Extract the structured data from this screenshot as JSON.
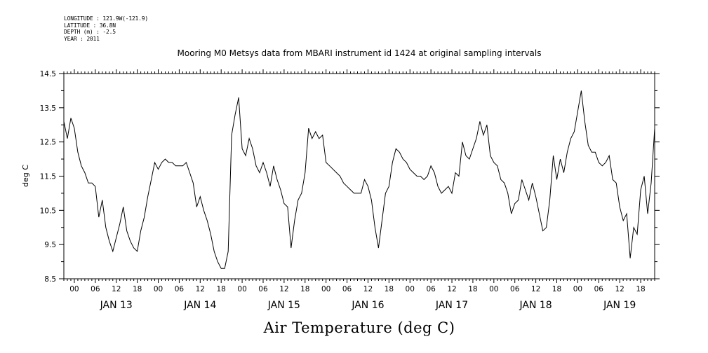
{
  "header": {
    "lines": [
      "LONGITUDE : 121.9W(-121.9)",
      "LATITUDE : 36.8N",
      "DEPTH (m) : -2.5",
      "YEAR : 2011"
    ]
  },
  "chart_data": {
    "type": "line",
    "title": "Mooring M0 Metsys data from MBARI instrument id 1424 at original sampling intervals",
    "xlabel": "Air Temperature (deg C)",
    "ylabel": "deg C",
    "ylim": [
      8.5,
      14.5
    ],
    "yticks": [
      "14.5",
      "13.5",
      "12.5",
      "11.5",
      "10.5",
      "9.5",
      "8.5"
    ],
    "x_hour_labels": [
      "00",
      "06",
      "12",
      "18"
    ],
    "days": [
      {
        "date": "2011-01-13",
        "label": "JAN 13"
      },
      {
        "date": "2011-01-14",
        "label": "JAN 14"
      },
      {
        "date": "2011-01-15",
        "label": "JAN 15"
      },
      {
        "date": "2011-01-16",
        "label": "JAN 16"
      },
      {
        "date": "2011-01-17",
        "label": "JAN 17"
      },
      {
        "date": "2011-01-18",
        "label": "JAN 18"
      },
      {
        "date": "2011-01-19",
        "label": "JAN 19"
      }
    ],
    "xlim": [
      "2011-01-12 21:00",
      "2011-01-19 22:00"
    ],
    "grid": false,
    "series": [
      {
        "color": "#000000",
        "points": [
          [
            "2011-01-12 21:00",
            13.1
          ],
          [
            "2011-01-12 22:00",
            12.6
          ],
          [
            "2011-01-12 23:00",
            13.2
          ],
          [
            "2011-01-13 00:00",
            12.9
          ],
          [
            "2011-01-13 01:00",
            12.2
          ],
          [
            "2011-01-13 02:00",
            11.8
          ],
          [
            "2011-01-13 03:00",
            11.6
          ],
          [
            "2011-01-13 04:00",
            11.3
          ],
          [
            "2011-01-13 05:00",
            11.3
          ],
          [
            "2011-01-13 06:00",
            11.2
          ],
          [
            "2011-01-13 07:00",
            10.3
          ],
          [
            "2011-01-13 08:00",
            10.8
          ],
          [
            "2011-01-13 09:00",
            10.0
          ],
          [
            "2011-01-13 10:00",
            9.6
          ],
          [
            "2011-01-13 11:00",
            9.3
          ],
          [
            "2011-01-13 12:00",
            9.7
          ],
          [
            "2011-01-13 13:00",
            10.1
          ],
          [
            "2011-01-13 14:00",
            10.6
          ],
          [
            "2011-01-13 15:00",
            9.9
          ],
          [
            "2011-01-13 16:00",
            9.6
          ],
          [
            "2011-01-13 17:00",
            9.4
          ],
          [
            "2011-01-13 18:00",
            9.3
          ],
          [
            "2011-01-13 19:00",
            9.9
          ],
          [
            "2011-01-13 20:00",
            10.3
          ],
          [
            "2011-01-13 21:00",
            10.9
          ],
          [
            "2011-01-13 22:00",
            11.4
          ],
          [
            "2011-01-13 23:00",
            11.9
          ],
          [
            "2011-01-14 00:00",
            11.7
          ],
          [
            "2011-01-14 01:00",
            11.9
          ],
          [
            "2011-01-14 02:00",
            12.0
          ],
          [
            "2011-01-14 03:00",
            11.9
          ],
          [
            "2011-01-14 04:00",
            11.9
          ],
          [
            "2011-01-14 05:00",
            11.8
          ],
          [
            "2011-01-14 06:00",
            11.8
          ],
          [
            "2011-01-14 07:00",
            11.8
          ],
          [
            "2011-01-14 08:00",
            11.9
          ],
          [
            "2011-01-14 09:00",
            11.6
          ],
          [
            "2011-01-14 10:00",
            11.3
          ],
          [
            "2011-01-14 11:00",
            10.6
          ],
          [
            "2011-01-14 12:00",
            10.9
          ],
          [
            "2011-01-14 13:00",
            10.5
          ],
          [
            "2011-01-14 14:00",
            10.2
          ],
          [
            "2011-01-14 15:00",
            9.8
          ],
          [
            "2011-01-14 16:00",
            9.3
          ],
          [
            "2011-01-14 17:00",
            9.0
          ],
          [
            "2011-01-14 18:00",
            8.8
          ],
          [
            "2011-01-14 19:00",
            8.8
          ],
          [
            "2011-01-14 20:00",
            9.3
          ],
          [
            "2011-01-14 21:00",
            12.7
          ],
          [
            "2011-01-14 22:00",
            13.3
          ],
          [
            "2011-01-14 23:00",
            13.8
          ],
          [
            "2011-01-15 00:00",
            12.3
          ],
          [
            "2011-01-15 01:00",
            12.1
          ],
          [
            "2011-01-15 02:00",
            12.6
          ],
          [
            "2011-01-15 03:00",
            12.3
          ],
          [
            "2011-01-15 04:00",
            11.8
          ],
          [
            "2011-01-15 05:00",
            11.6
          ],
          [
            "2011-01-15 06:00",
            11.9
          ],
          [
            "2011-01-15 07:00",
            11.6
          ],
          [
            "2011-01-15 08:00",
            11.2
          ],
          [
            "2011-01-15 09:00",
            11.8
          ],
          [
            "2011-01-15 10:00",
            11.4
          ],
          [
            "2011-01-15 11:00",
            11.1
          ],
          [
            "2011-01-15 12:00",
            10.7
          ],
          [
            "2011-01-15 13:00",
            10.6
          ],
          [
            "2011-01-15 14:00",
            9.4
          ],
          [
            "2011-01-15 15:00",
            10.2
          ],
          [
            "2011-01-15 16:00",
            10.8
          ],
          [
            "2011-01-15 17:00",
            11.0
          ],
          [
            "2011-01-15 18:00",
            11.6
          ],
          [
            "2011-01-15 19:00",
            12.9
          ],
          [
            "2011-01-15 20:00",
            12.6
          ],
          [
            "2011-01-15 21:00",
            12.8
          ],
          [
            "2011-01-15 22:00",
            12.6
          ],
          [
            "2011-01-15 23:00",
            12.7
          ],
          [
            "2011-01-16 00:00",
            11.9
          ],
          [
            "2011-01-16 01:00",
            11.8
          ],
          [
            "2011-01-16 02:00",
            11.7
          ],
          [
            "2011-01-16 03:00",
            11.6
          ],
          [
            "2011-01-16 04:00",
            11.5
          ],
          [
            "2011-01-16 05:00",
            11.3
          ],
          [
            "2011-01-16 06:00",
            11.2
          ],
          [
            "2011-01-16 07:00",
            11.1
          ],
          [
            "2011-01-16 08:00",
            11.0
          ],
          [
            "2011-01-16 09:00",
            11.0
          ],
          [
            "2011-01-16 10:00",
            11.0
          ],
          [
            "2011-01-16 11:00",
            11.4
          ],
          [
            "2011-01-16 12:00",
            11.2
          ],
          [
            "2011-01-16 13:00",
            10.8
          ],
          [
            "2011-01-16 14:00",
            10.0
          ],
          [
            "2011-01-16 15:00",
            9.4
          ],
          [
            "2011-01-16 16:00",
            10.2
          ],
          [
            "2011-01-16 17:00",
            11.0
          ],
          [
            "2011-01-16 18:00",
            11.2
          ],
          [
            "2011-01-16 19:00",
            11.9
          ],
          [
            "2011-01-16 20:00",
            12.3
          ],
          [
            "2011-01-16 21:00",
            12.2
          ],
          [
            "2011-01-16 22:00",
            12.0
          ],
          [
            "2011-01-16 23:00",
            11.9
          ],
          [
            "2011-01-17 00:00",
            11.7
          ],
          [
            "2011-01-17 01:00",
            11.6
          ],
          [
            "2011-01-17 02:00",
            11.5
          ],
          [
            "2011-01-17 03:00",
            11.5
          ],
          [
            "2011-01-17 04:00",
            11.4
          ],
          [
            "2011-01-17 05:00",
            11.5
          ],
          [
            "2011-01-17 06:00",
            11.8
          ],
          [
            "2011-01-17 07:00",
            11.6
          ],
          [
            "2011-01-17 08:00",
            11.2
          ],
          [
            "2011-01-17 09:00",
            11.0
          ],
          [
            "2011-01-17 10:00",
            11.1
          ],
          [
            "2011-01-17 11:00",
            11.2
          ],
          [
            "2011-01-17 12:00",
            11.0
          ],
          [
            "2011-01-17 13:00",
            11.6
          ],
          [
            "2011-01-17 14:00",
            11.5
          ],
          [
            "2011-01-17 15:00",
            12.5
          ],
          [
            "2011-01-17 16:00",
            12.1
          ],
          [
            "2011-01-17 17:00",
            12.0
          ],
          [
            "2011-01-17 18:00",
            12.3
          ],
          [
            "2011-01-17 19:00",
            12.6
          ],
          [
            "2011-01-17 20:00",
            13.1
          ],
          [
            "2011-01-17 21:00",
            12.7
          ],
          [
            "2011-01-17 22:00",
            13.0
          ],
          [
            "2011-01-17 23:00",
            12.1
          ],
          [
            "2011-01-18 00:00",
            11.9
          ],
          [
            "2011-01-18 01:00",
            11.8
          ],
          [
            "2011-01-18 02:00",
            11.4
          ],
          [
            "2011-01-18 03:00",
            11.3
          ],
          [
            "2011-01-18 04:00",
            11.0
          ],
          [
            "2011-01-18 05:00",
            10.4
          ],
          [
            "2011-01-18 06:00",
            10.7
          ],
          [
            "2011-01-18 07:00",
            10.8
          ],
          [
            "2011-01-18 08:00",
            11.4
          ],
          [
            "2011-01-18 09:00",
            11.1
          ],
          [
            "2011-01-18 10:00",
            10.8
          ],
          [
            "2011-01-18 11:00",
            11.3
          ],
          [
            "2011-01-18 12:00",
            10.9
          ],
          [
            "2011-01-18 13:00",
            10.4
          ],
          [
            "2011-01-18 14:00",
            9.9
          ],
          [
            "2011-01-18 15:00",
            10.0
          ],
          [
            "2011-01-18 16:00",
            10.8
          ],
          [
            "2011-01-18 17:00",
            12.1
          ],
          [
            "2011-01-18 18:00",
            11.4
          ],
          [
            "2011-01-18 19:00",
            12.0
          ],
          [
            "2011-01-18 20:00",
            11.6
          ],
          [
            "2011-01-18 21:00",
            12.2
          ],
          [
            "2011-01-18 22:00",
            12.6
          ],
          [
            "2011-01-18 23:00",
            12.8
          ],
          [
            "2011-01-19 00:00",
            13.4
          ],
          [
            "2011-01-19 01:00",
            14.0
          ],
          [
            "2011-01-19 02:00",
            13.1
          ],
          [
            "2011-01-19 03:00",
            12.4
          ],
          [
            "2011-01-19 04:00",
            12.2
          ],
          [
            "2011-01-19 05:00",
            12.2
          ],
          [
            "2011-01-19 06:00",
            11.9
          ],
          [
            "2011-01-19 07:00",
            11.8
          ],
          [
            "2011-01-19 08:00",
            11.9
          ],
          [
            "2011-01-19 09:00",
            12.1
          ],
          [
            "2011-01-19 10:00",
            11.4
          ],
          [
            "2011-01-19 11:00",
            11.3
          ],
          [
            "2011-01-19 12:00",
            10.6
          ],
          [
            "2011-01-19 13:00",
            10.2
          ],
          [
            "2011-01-19 14:00",
            10.4
          ],
          [
            "2011-01-19 15:00",
            9.1
          ],
          [
            "2011-01-19 16:00",
            10.0
          ],
          [
            "2011-01-19 17:00",
            9.8
          ],
          [
            "2011-01-19 18:00",
            11.1
          ],
          [
            "2011-01-19 19:00",
            11.5
          ],
          [
            "2011-01-19 20:00",
            10.4
          ],
          [
            "2011-01-19 21:00",
            11.3
          ],
          [
            "2011-01-19 22:00",
            12.9
          ]
        ]
      }
    ]
  }
}
